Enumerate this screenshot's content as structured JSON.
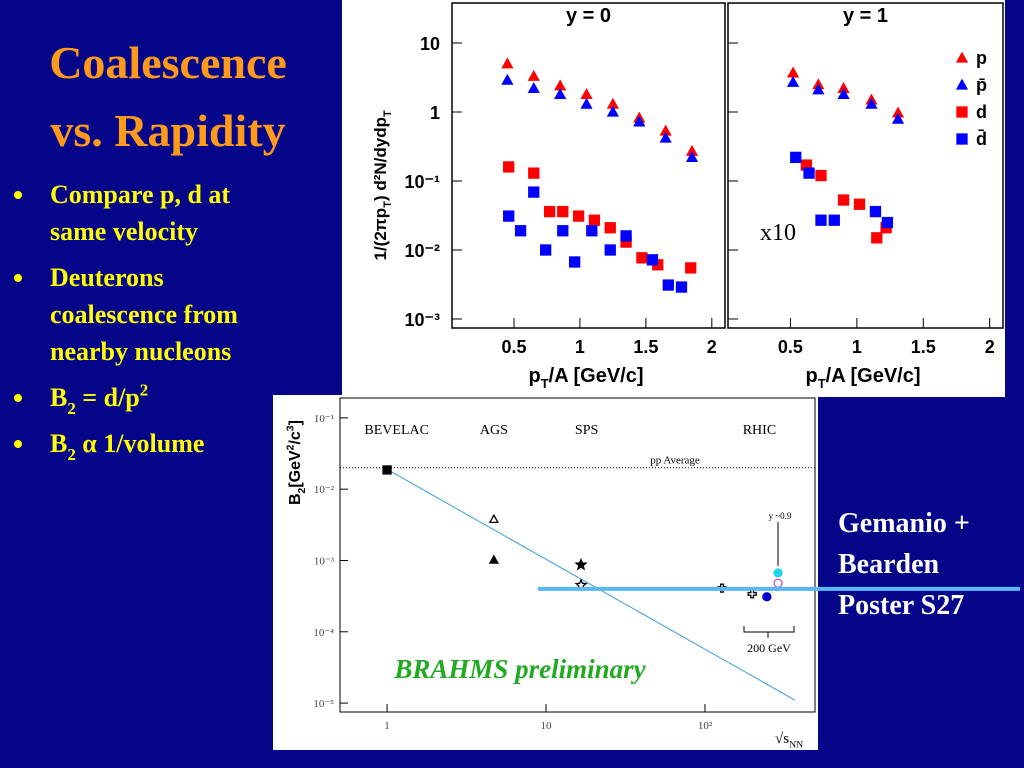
{
  "slide": {
    "title": [
      "Coalescence",
      "vs. Rapidity"
    ],
    "bullets": [
      [
        [
          {
            "t": "Compare p, d at"
          }
        ],
        [
          {
            "t": "same velocity"
          }
        ]
      ],
      [
        [
          {
            "t": "Deuterons"
          }
        ],
        [
          {
            "t": "coalescence from"
          }
        ],
        [
          {
            "t": "nearby nucleons"
          }
        ]
      ],
      [
        [
          {
            "t": "B"
          },
          {
            "t": "2",
            "s": "sub"
          },
          {
            "t": " = d/p"
          },
          {
            "t": "2",
            "s": "sup"
          }
        ]
      ],
      [
        [
          {
            "t": "B"
          },
          {
            "t": "2",
            "s": "sub"
          },
          {
            "t": " α 1/volume"
          }
        ]
      ]
    ],
    "note": [
      "Gemanio +",
      "Bearden",
      "Poster S27"
    ]
  },
  "chart_data": [
    {
      "type": "scatter",
      "title": "y = 0",
      "log_y": true,
      "show_ytick_labels": true,
      "xlim": [
        0.03,
        2.1
      ],
      "ylim": [
        0.00074,
        38
      ],
      "xticks": [
        0.5,
        1,
        1.5,
        2
      ],
      "yticks": [
        10,
        1,
        {
          "value": 0.1,
          "label": "10⁻¹"
        },
        {
          "value": 0.01,
          "label": "10⁻²"
        },
        {
          "value": 0.001,
          "label": "10⁻³"
        }
      ],
      "xlabel": [
        {
          "t": "p"
        },
        {
          "t": "T",
          "s": "sub"
        },
        {
          "t": "/A [GeV/c]"
        }
      ],
      "ylabel": [
        {
          "t": "1/(2πp"
        },
        {
          "t": "T",
          "s": "sub"
        },
        {
          "t": ") d²N/dydp"
        },
        {
          "t": "T",
          "s": "sub"
        }
      ],
      "series": [
        {
          "name": "p",
          "marker": "triangle",
          "color": "#ff0000",
          "x": [
            0.45,
            0.65,
            0.85,
            1.05,
            1.25,
            1.45,
            1.65,
            1.85
          ],
          "values": [
            5.0,
            3.3,
            2.4,
            1.8,
            1.3,
            0.82,
            0.53,
            0.27
          ]
        },
        {
          "name": "p̄",
          "marker": "triangle",
          "color": "#0000ff",
          "x": [
            0.45,
            0.65,
            0.85,
            1.05,
            1.25,
            1.45,
            1.65,
            1.85
          ],
          "values": [
            2.9,
            2.2,
            1.8,
            1.3,
            1.0,
            0.72,
            0.42,
            0.22
          ]
        },
        {
          "name": "d",
          "marker": "square",
          "color": "#ff0000",
          "x": [
            0.46,
            0.65,
            0.77,
            0.87,
            0.99,
            1.11,
            1.23,
            1.35,
            1.47,
            1.59,
            1.84
          ],
          "values": [
            0.16,
            0.13,
            0.036,
            0.036,
            0.031,
            0.027,
            0.021,
            0.013,
            0.0077,
            0.0061,
            0.0055
          ]
        },
        {
          "name": "d̄",
          "marker": "square",
          "color": "#0000ff",
          "x": [
            0.46,
            0.55,
            0.65,
            0.74,
            0.87,
            0.96,
            1.09,
            1.23,
            1.35,
            1.55,
            1.67,
            1.77
          ],
          "values": [
            0.031,
            0.019,
            0.069,
            0.01,
            0.019,
            0.0067,
            0.019,
            0.01,
            0.016,
            0.0072,
            0.0031,
            0.0029
          ]
        }
      ]
    },
    {
      "type": "scatter",
      "title": "y = 1",
      "log_y": true,
      "show_ytick_labels": false,
      "legend": "right",
      "annotation": "x10",
      "xlim": [
        0.03,
        2.1
      ],
      "ylim": [
        0.00074,
        38
      ],
      "xticks": [
        0.5,
        1,
        1.5,
        2
      ],
      "yticks": [
        10,
        1,
        0.1,
        0.01,
        0.001
      ],
      "xlabel": [
        {
          "t": "p"
        },
        {
          "t": "T",
          "s": "sub"
        },
        {
          "t": "/A [GeV/c]"
        }
      ],
      "series": [
        {
          "name": "p",
          "marker": "triangle",
          "color": "#ff0000",
          "x": [
            0.52,
            0.71,
            0.9,
            1.11,
            1.31
          ],
          "values": [
            3.7,
            2.5,
            2.2,
            1.5,
            0.97
          ]
        },
        {
          "name": "p̄",
          "marker": "triangle",
          "color": "#0000ff",
          "x": [
            0.52,
            0.71,
            0.9,
            1.11,
            1.31
          ],
          "values": [
            2.7,
            2.1,
            1.8,
            1.3,
            0.79
          ]
        },
        {
          "name": "d",
          "marker": "square",
          "color": "#ff0000",
          "x": [
            0.62,
            0.73,
            0.9,
            1.02,
            1.15,
            1.22
          ],
          "values": [
            0.17,
            0.12,
            0.053,
            0.046,
            0.015,
            0.021
          ]
        },
        {
          "name": "d̄",
          "marker": "square",
          "color": "#0000ff",
          "x": [
            0.54,
            0.64,
            0.73,
            0.83,
            1.14,
            1.23
          ],
          "values": [
            0.22,
            0.13,
            0.027,
            0.027,
            0.036,
            0.025
          ]
        }
      ]
    },
    {
      "type": "scatter",
      "log_x": true,
      "log_y": true,
      "show_ytick_labels": true,
      "xlim": [
        0.506,
        492
      ],
      "ylim": [
        7.5e-06,
        0.19
      ],
      "xticks": [
        1,
        10,
        {
          "value": 100,
          "label": "10²"
        }
      ],
      "yticks": [
        {
          "value": 0.1,
          "label": "10⁻¹"
        },
        {
          "value": 0.01,
          "label": "10⁻²"
        },
        {
          "value": 0.001,
          "label": "10⁻³"
        },
        {
          "value": 0.0001,
          "label": "10⁻⁴"
        },
        {
          "value": 1e-05,
          "label": "10⁻⁵"
        }
      ],
      "xlabel": [
        {
          "t": "√s"
        },
        {
          "t": "NN",
          "s": "sub"
        }
      ],
      "ylabel": [
        {
          "t": "B"
        },
        {
          "t": "2",
          "s": "sub"
        },
        {
          "t": "[GeV"
        },
        {
          "t": "2",
          "s": "sup"
        },
        {
          "t": "/c"
        },
        {
          "t": "3",
          "s": "sup"
        },
        {
          "t": "]"
        }
      ],
      "regions": [
        {
          "label": "BEVELAC",
          "x": 1.15
        },
        {
          "label": "AGS",
          "x": 4.7
        },
        {
          "label": "SPS",
          "x": 18
        },
        {
          "label": "RHIC",
          "x": 220
        }
      ],
      "pp_average": {
        "label": "pp Average",
        "value": 0.02
      },
      "fit_line": {
        "x": [
          1,
          368
        ],
        "values": [
          0.019,
          1.1e-05
        ]
      },
      "band": {
        "x": 8.9,
        "value": 0.0004
      },
      "rhic_label": "200 GeV",
      "rapidity_label": "y ~0.9",
      "watermark": "BRAHMS preliminary",
      "series": [
        {
          "marker": "square",
          "color": "#000000",
          "fill": true,
          "x": [
            1
          ],
          "values": [
            0.0186
          ]
        },
        {
          "marker": "triangle",
          "color": "#000000",
          "fill": false,
          "x": [
            4.7
          ],
          "values": [
            0.0038
          ]
        },
        {
          "marker": "triangle",
          "color": "#000000",
          "fill": true,
          "x": [
            4.7
          ],
          "values": [
            0.00102
          ]
        },
        {
          "marker": "star",
          "color": "#000000",
          "fill": true,
          "x": [
            16.6
          ],
          "values": [
            0.00087
          ]
        },
        {
          "marker": "star",
          "color": "#000000",
          "fill": false,
          "x": [
            16.6
          ],
          "values": [
            0.00045
          ]
        },
        {
          "marker": "cross",
          "color": "#000000",
          "fill": false,
          "x": [
            128,
            198
          ],
          "values": [
            0.00041,
            0.00034
          ]
        },
        {
          "marker": "circle",
          "color": "#0000cc",
          "fill": true,
          "x": [
            245
          ],
          "values": [
            0.00031
          ]
        },
        {
          "marker": "circle",
          "color": "#cc55cc",
          "fill": false,
          "x": [
            288
          ],
          "values": [
            0.00048
          ]
        },
        {
          "marker": "circle",
          "color": "#22d4e8",
          "fill": true,
          "x": [
            288
          ],
          "values": [
            0.00067
          ]
        }
      ]
    }
  ]
}
